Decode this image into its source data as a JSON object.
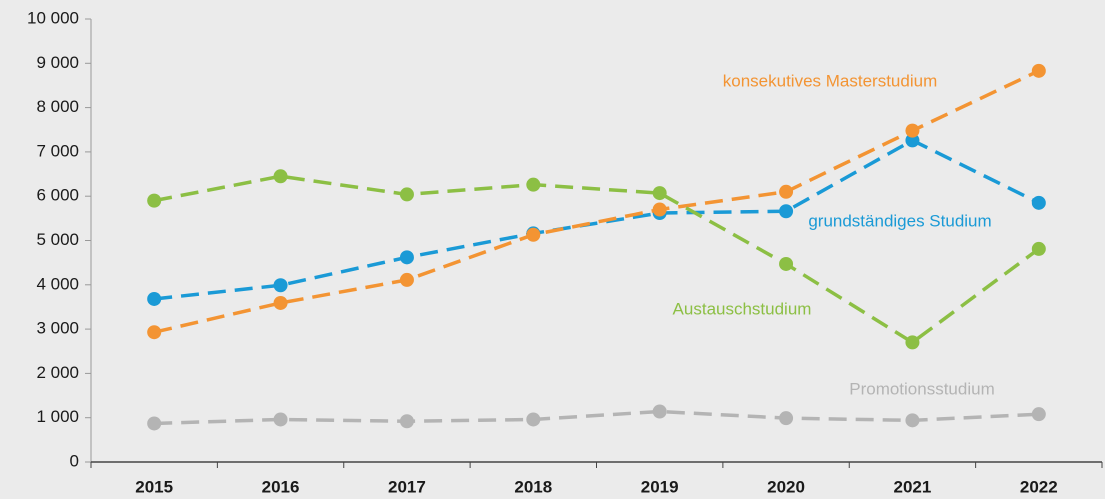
{
  "chart_data": {
    "type": "line",
    "categories": [
      "2015",
      "2016",
      "2017",
      "2018",
      "2019",
      "2020",
      "2021",
      "2022"
    ],
    "series": [
      {
        "name": "grundständiges Studium",
        "color": "#1a9ad6",
        "values": [
          3680,
          3990,
          4620,
          5160,
          5620,
          5660,
          7260,
          5850
        ]
      },
      {
        "name": "konsekutives Masterstudium",
        "color": "#f39433",
        "values": [
          2930,
          3590,
          4110,
          5130,
          5700,
          6100,
          7480,
          8830
        ]
      },
      {
        "name": "Austauschstudium",
        "color": "#8cbf44",
        "values": [
          5900,
          6450,
          6040,
          6260,
          6070,
          4470,
          2700,
          4810
        ]
      },
      {
        "name": "Promotionsstudium",
        "color": "#b4b4b4",
        "values": [
          870,
          960,
          920,
          960,
          1140,
          990,
          940,
          1080
        ]
      }
    ],
    "ylim": [
      0,
      10000
    ],
    "yticks": [
      0,
      {
        "value": 1000,
        "label": "1 000"
      },
      {
        "value": 2000,
        "label": "2 000"
      },
      {
        "value": 3000,
        "label": "3 000"
      },
      {
        "value": 4000,
        "label": "4 000"
      },
      {
        "value": 5000,
        "label": "5 000"
      },
      {
        "value": 6000,
        "label": "6 000"
      },
      {
        "value": 7000,
        "label": "7 000"
      },
      {
        "value": 8000,
        "label": "8 000"
      },
      {
        "value": 9000,
        "label": "9 000"
      },
      {
        "value": 10000,
        "label": "10 000"
      }
    ],
    "grid": false
  }
}
